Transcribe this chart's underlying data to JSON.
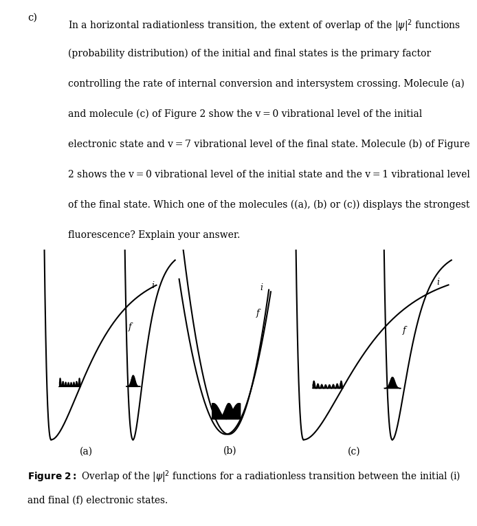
{
  "bg_color": "#ffffff",
  "line_color": "#000000",
  "paragraph_lines": [
    "In a horizontal radiationless transition, the extent of overlap of the |\\u03c8|\\u00b2 functions",
    "(probability distribution) of the initial and final states is the primary factor",
    "controlling the rate of internal conversion and intersystem crossing. Molecule (a)",
    "and molecule (c) of Figure 2 show the v\\u202f=\\u202f0 vibrational level of the initial",
    "electronic state and v\\u202f=\\u202f7 vibrational level of the final state. Molecule (b) of Figure",
    "2 shows the v\\u202f=\\u202f0 vibrational level of the initial state and the v\\u202f=\\u202f1 vibrational level",
    "of the final state. Which one of the molecules ((a), (b) or (c)) displays the strongest",
    "fluorescence? Explain your answer."
  ]
}
